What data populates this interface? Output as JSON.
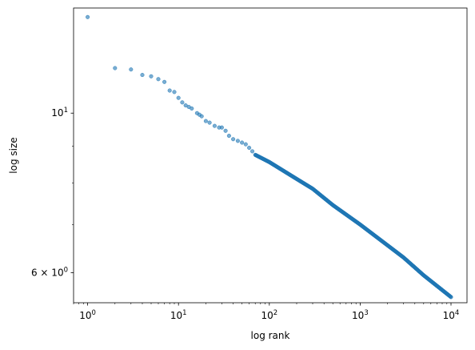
{
  "chart_data": {
    "type": "scatter",
    "title": "",
    "xlabel": "log rank",
    "ylabel": "log size",
    "xscale": "log",
    "yscale": "log",
    "xlim": [
      0.7,
      15000
    ],
    "ylim": [
      5.45,
      14.0
    ],
    "grid": false,
    "legend": "none",
    "marker_color": "#1f77b4",
    "marker_alpha": 0.6,
    "x_ticks": [
      {
        "value": 1,
        "base": "10",
        "exp": "0"
      },
      {
        "value": 10,
        "base": "10",
        "exp": "1"
      },
      {
        "value": 100,
        "base": "10",
        "exp": "2"
      },
      {
        "value": 1000,
        "base": "10",
        "exp": "3"
      },
      {
        "value": 10000,
        "base": "10",
        "exp": "4"
      }
    ],
    "y_ticks": [
      {
        "value": 10,
        "text": "10",
        "exp": "1"
      },
      {
        "value": 6,
        "text": "6 × 10",
        "exp": "0"
      }
    ],
    "y_minor_ticks": [
      7,
      8,
      9
    ],
    "points": [
      [
        1,
        13.6
      ],
      [
        2,
        11.55
      ],
      [
        3,
        11.5
      ],
      [
        4,
        11.3
      ],
      [
        5,
        11.25
      ],
      [
        6,
        11.15
      ],
      [
        7,
        11.05
      ],
      [
        8,
        10.75
      ],
      [
        9,
        10.7
      ],
      [
        10,
        10.5
      ],
      [
        11,
        10.35
      ],
      [
        12,
        10.25
      ],
      [
        13,
        10.2
      ],
      [
        14,
        10.15
      ],
      [
        16,
        10.0
      ],
      [
        17,
        9.95
      ],
      [
        18,
        9.9
      ],
      [
        20,
        9.75
      ],
      [
        22,
        9.7
      ],
      [
        25,
        9.6
      ],
      [
        28,
        9.55
      ],
      [
        30,
        9.55
      ],
      [
        33,
        9.45
      ],
      [
        36,
        9.3
      ],
      [
        40,
        9.2
      ],
      [
        45,
        9.15
      ],
      [
        50,
        9.1
      ],
      [
        55,
        9.05
      ],
      [
        60,
        8.95
      ],
      [
        65,
        8.85
      ]
    ],
    "trend": [
      [
        70,
        8.75
      ],
      [
        100,
        8.55
      ],
      [
        200,
        8.1
      ],
      [
        300,
        7.85
      ],
      [
        500,
        7.45
      ],
      [
        1000,
        7.0
      ],
      [
        2000,
        6.55
      ],
      [
        3000,
        6.3
      ],
      [
        5000,
        5.95
      ],
      [
        10000,
        5.55
      ]
    ]
  }
}
